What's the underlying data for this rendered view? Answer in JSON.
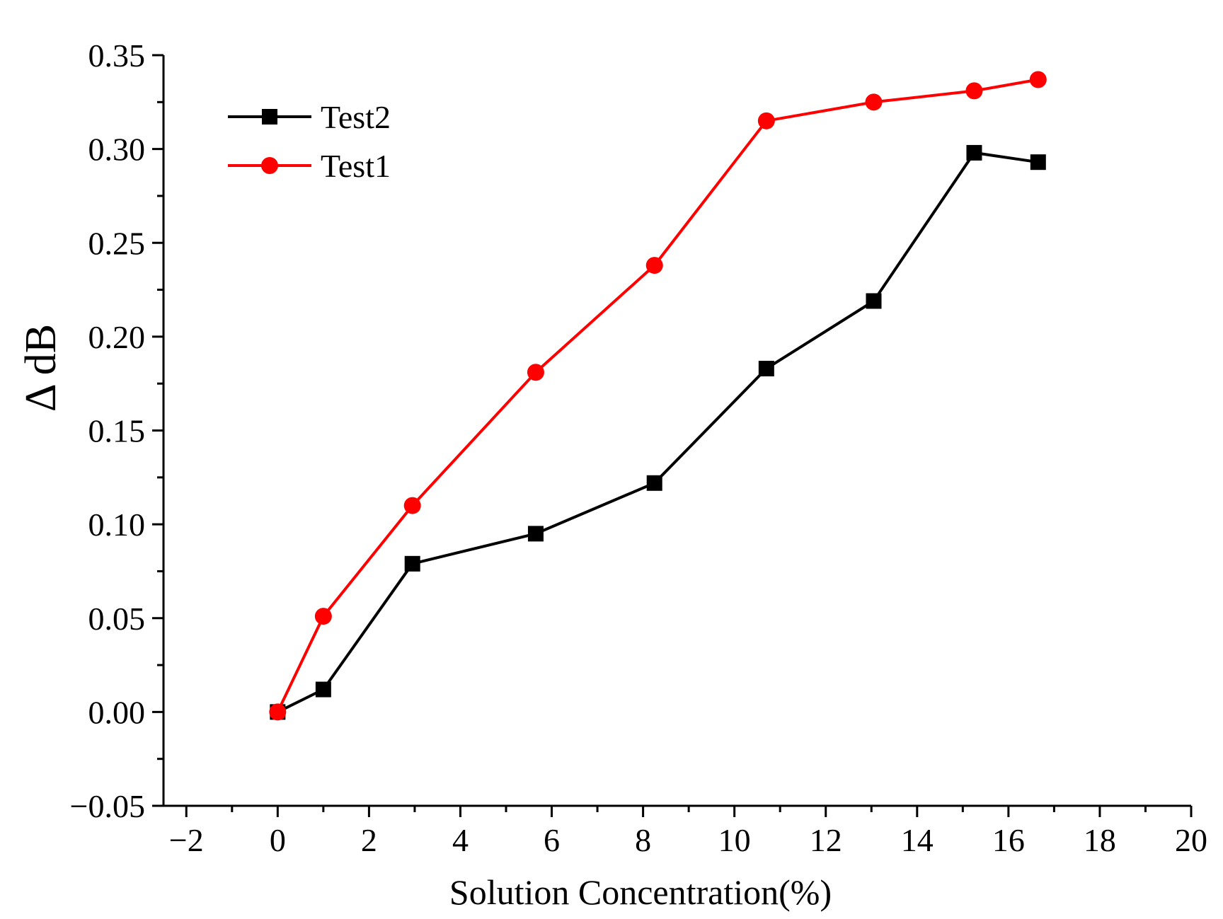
{
  "chart_data": {
    "type": "line",
    "title": "",
    "xlabel": "Solution Concentration(%)",
    "ylabel": "Δ dB",
    "xlim": [
      -2.5,
      20
    ],
    "ylim": [
      -0.05,
      0.35
    ],
    "xticks": [
      -2,
      0,
      2,
      4,
      6,
      8,
      10,
      12,
      14,
      16,
      18,
      20
    ],
    "xtick_labels": [
      "−2",
      "0",
      "2",
      "4",
      "6",
      "8",
      "10",
      "12",
      "14",
      "16",
      "18",
      "20"
    ],
    "yticks": [
      -0.05,
      0.0,
      0.05,
      0.1,
      0.15,
      0.2,
      0.25,
      0.3,
      0.35
    ],
    "ytick_labels": [
      "−0.05",
      "0.00",
      "0.05",
      "0.10",
      "0.15",
      "0.20",
      "0.25",
      "0.30",
      "0.35"
    ],
    "grid": false,
    "legend_position": "top-left",
    "series": [
      {
        "name": "Test2",
        "color": "#000000",
        "marker": "square",
        "x": [
          0,
          1.0,
          2.95,
          5.65,
          8.25,
          10.7,
          13.05,
          15.25,
          16.65
        ],
        "y": [
          0.0,
          0.012,
          0.079,
          0.095,
          0.122,
          0.183,
          0.219,
          0.298,
          0.293
        ]
      },
      {
        "name": "Test1",
        "color": "#ff0000",
        "marker": "circle",
        "x": [
          0,
          1.0,
          2.95,
          5.65,
          8.25,
          10.7,
          13.05,
          15.25,
          16.65
        ],
        "y": [
          0.0,
          0.051,
          0.11,
          0.181,
          0.238,
          0.315,
          0.325,
          0.331,
          0.337
        ]
      }
    ]
  }
}
